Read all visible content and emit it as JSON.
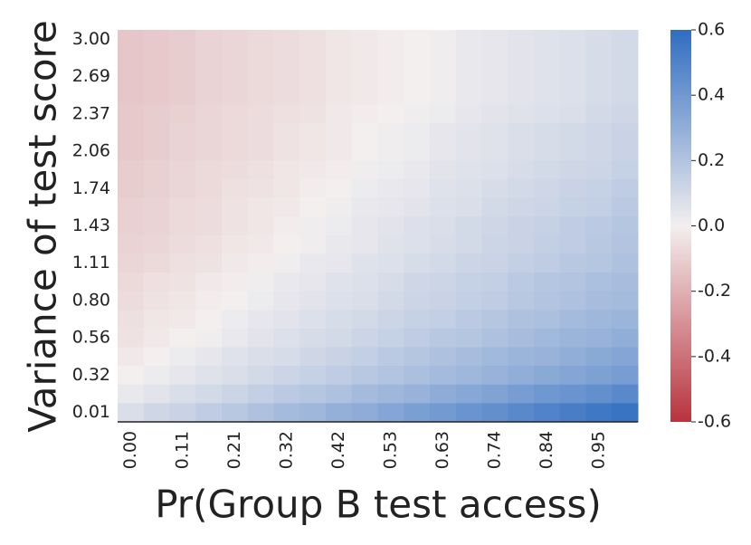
{
  "chart_data": {
    "type": "heatmap",
    "x_label": "Pr(Group B test access)",
    "y_label": "Variance of test score",
    "x_categories": [
      "0.00",
      null,
      "0.11",
      null,
      "0.21",
      null,
      "0.32",
      null,
      "0.42",
      null,
      "0.53",
      null,
      "0.63",
      null,
      "0.74",
      null,
      "0.84",
      null,
      "0.95",
      null
    ],
    "y_categories": [
      "3.00",
      null,
      "2.69",
      null,
      "2.37",
      null,
      "2.06",
      null,
      "1.74",
      null,
      "1.43",
      null,
      "1.11",
      null,
      "0.80",
      null,
      "0.56",
      null,
      "0.32",
      null,
      "0.01"
    ],
    "values": [
      [
        -0.13,
        -0.12,
        -0.11,
        -0.09,
        -0.08,
        -0.07,
        -0.06,
        -0.05,
        -0.03,
        -0.02,
        -0.01,
        0,
        0.01,
        0.03,
        0.04,
        0.05,
        0.06,
        0.07,
        0.09,
        0.1
      ],
      [
        -0.13,
        -0.12,
        -0.11,
        -0.09,
        -0.08,
        -0.07,
        -0.06,
        -0.05,
        -0.03,
        -0.02,
        -0.01,
        0,
        0.01,
        0.03,
        0.04,
        0.05,
        0.06,
        0.07,
        0.09,
        0.1
      ],
      [
        -0.13,
        -0.12,
        -0.11,
        -0.09,
        -0.08,
        -0.07,
        -0.06,
        -0.05,
        -0.03,
        -0.02,
        -0.01,
        0,
        0.01,
        0.03,
        0.04,
        0.05,
        0.06,
        0.07,
        0.09,
        0.1
      ],
      [
        -0.13,
        -0.12,
        -0.11,
        -0.09,
        -0.08,
        -0.07,
        -0.06,
        -0.05,
        -0.03,
        -0.02,
        -0.01,
        0,
        0.01,
        0.03,
        0.04,
        0.05,
        0.06,
        0.07,
        0.09,
        0.1
      ],
      [
        -0.12,
        -0.11,
        -0.1,
        -0.08,
        -0.07,
        -0.06,
        -0.05,
        -0.04,
        -0.02,
        -0.01,
        0,
        0.01,
        0.02,
        0.04,
        0.05,
        0.06,
        0.07,
        0.08,
        0.1,
        0.11
      ],
      [
        -0.12,
        -0.11,
        -0.09,
        -0.08,
        -0.07,
        -0.06,
        -0.04,
        -0.03,
        -0.02,
        0,
        0.01,
        0.02,
        0.04,
        0.05,
        0.06,
        0.08,
        0.09,
        0.1,
        0.11,
        0.13
      ],
      [
        -0.12,
        -0.11,
        -0.09,
        -0.08,
        -0.07,
        -0.06,
        -0.04,
        -0.03,
        -0.02,
        0,
        0.01,
        0.02,
        0.04,
        0.05,
        0.06,
        0.08,
        0.09,
        0.1,
        0.11,
        0.13
      ],
      [
        -0.11,
        -0.1,
        -0.08,
        -0.07,
        -0.06,
        -0.05,
        -0.03,
        -0.02,
        -0.01,
        0.01,
        0.02,
        0.03,
        0.05,
        0.06,
        0.07,
        0.09,
        0.1,
        0.11,
        0.12,
        0.14
      ],
      [
        -0.11,
        -0.1,
        -0.08,
        -0.07,
        -0.05,
        -0.04,
        -0.03,
        -0.01,
        0,
        0.02,
        0.03,
        0.04,
        0.06,
        0.07,
        0.09,
        0.1,
        0.11,
        0.13,
        0.14,
        0.16
      ],
      [
        -0.1,
        -0.09,
        -0.07,
        -0.06,
        -0.04,
        -0.03,
        -0.02,
        0,
        0.01,
        0.03,
        0.04,
        0.05,
        0.07,
        0.08,
        0.1,
        0.11,
        0.12,
        0.14,
        0.15,
        0.17
      ],
      [
        -0.1,
        -0.09,
        -0.07,
        -0.06,
        -0.04,
        -0.03,
        -0.01,
        0.01,
        0.02,
        0.04,
        0.05,
        0.07,
        0.08,
        0.1,
        0.11,
        0.13,
        0.14,
        0.16,
        0.17,
        0.19
      ],
      [
        -0.09,
        -0.08,
        -0.06,
        -0.05,
        -0.03,
        -0.02,
        0,
        0.01,
        0.03,
        0.04,
        0.06,
        0.07,
        0.09,
        0.1,
        0.12,
        0.13,
        0.15,
        0.16,
        0.18,
        0.2
      ],
      [
        -0.08,
        -0.07,
        -0.05,
        -0.04,
        -0.02,
        -0.01,
        0.01,
        0.03,
        0.04,
        0.06,
        0.07,
        0.09,
        0.1,
        0.12,
        0.13,
        0.15,
        0.16,
        0.18,
        0.19,
        0.21
      ],
      [
        -0.07,
        -0.05,
        -0.04,
        -0.02,
        -0.01,
        0.01,
        0.03,
        0.04,
        0.06,
        0.07,
        0.09,
        0.11,
        0.12,
        0.14,
        0.15,
        0.17,
        0.19,
        0.2,
        0.22,
        0.23
      ],
      [
        -0.06,
        -0.04,
        -0.03,
        -0.01,
        0,
        0.02,
        0.04,
        0.05,
        0.07,
        0.08,
        0.1,
        0.12,
        0.13,
        0.15,
        0.16,
        0.18,
        0.2,
        0.21,
        0.23,
        0.24
      ],
      [
        -0.05,
        -0.03,
        -0.02,
        0,
        0.02,
        0.04,
        0.05,
        0.07,
        0.09,
        0.1,
        0.12,
        0.14,
        0.15,
        0.17,
        0.19,
        0.21,
        0.22,
        0.24,
        0.26,
        0.27
      ],
      [
        -0.04,
        -0.02,
        0,
        0.01,
        0.03,
        0.05,
        0.07,
        0.09,
        0.1,
        0.12,
        0.14,
        0.16,
        0.18,
        0.19,
        0.21,
        0.23,
        0.25,
        0.27,
        0.28,
        0.3
      ],
      [
        -0.02,
        0,
        0.02,
        0.04,
        0.06,
        0.08,
        0.09,
        0.11,
        0.13,
        0.15,
        0.17,
        0.19,
        0.21,
        0.23,
        0.25,
        0.27,
        0.28,
        0.3,
        0.32,
        0.34
      ],
      [
        0,
        0.02,
        0.04,
        0.06,
        0.08,
        0.1,
        0.12,
        0.14,
        0.16,
        0.18,
        0.2,
        0.22,
        0.24,
        0.26,
        0.28,
        0.3,
        0.32,
        0.34,
        0.36,
        0.38
      ],
      [
        0.03,
        0.05,
        0.08,
        0.1,
        0.12,
        0.15,
        0.17,
        0.19,
        0.21,
        0.24,
        0.26,
        0.28,
        0.31,
        0.33,
        0.35,
        0.38,
        0.4,
        0.42,
        0.44,
        0.47
      ],
      [
        0.08,
        0.11,
        0.13,
        0.16,
        0.18,
        0.21,
        0.24,
        0.26,
        0.29,
        0.31,
        0.34,
        0.37,
        0.39,
        0.42,
        0.44,
        0.47,
        0.5,
        0.52,
        0.55,
        0.57
      ]
    ],
    "colorscale": [
      "#b8333d",
      "#f3efef",
      "#2f6dc1"
    ],
    "clim": [
      -0.6,
      0.6
    ],
    "cticks": [
      -0.6,
      -0.4,
      -0.2,
      {
        "value": 0,
        "label": "0.0"
      },
      0.2,
      0.4,
      0.6
    ]
  }
}
